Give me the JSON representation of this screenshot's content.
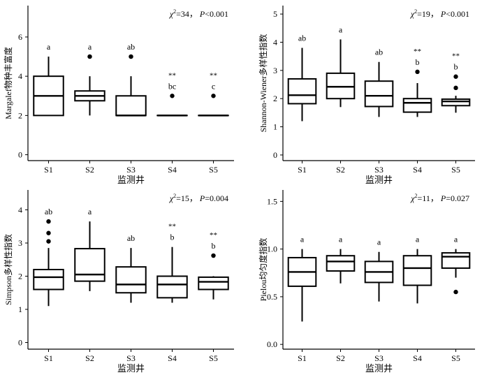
{
  "chart_data": [
    {
      "type": "box",
      "ylabel": "Margalef物种丰富度",
      "xlabel": "监测井",
      "ylim": [
        -0.3,
        7.6
      ],
      "yticks": [
        0,
        2,
        4,
        6
      ],
      "ytick_labels": [
        "0",
        "2",
        "4",
        "6"
      ],
      "categories": [
        "S1",
        "S2",
        "S3",
        "S4",
        "S5"
      ],
      "stat_chi": "34",
      "stat_p": "P<0.001",
      "boxes": [
        {
          "whisker_low": 2.0,
          "q1": 2.0,
          "median": 3.0,
          "q3": 4.0,
          "whisker_high": 5.0,
          "outliers": [],
          "letter": "a",
          "sig": ""
        },
        {
          "whisker_low": 2.0,
          "q1": 2.75,
          "median": 3.0,
          "q3": 3.25,
          "whisker_high": 4.0,
          "outliers": [
            5.0
          ],
          "letter": "a",
          "sig": ""
        },
        {
          "whisker_low": 2.0,
          "q1": 2.0,
          "median": 2.0,
          "q3": 3.0,
          "whisker_high": 4.0,
          "outliers": [
            5.0
          ],
          "letter": "ab",
          "sig": ""
        },
        {
          "whisker_low": 2.0,
          "q1": 2.0,
          "median": 2.0,
          "q3": 2.0,
          "whisker_high": 2.0,
          "outliers": [
            3.0
          ],
          "letter": "bc",
          "sig": "**"
        },
        {
          "whisker_low": 2.0,
          "q1": 2.0,
          "median": 2.0,
          "q3": 2.0,
          "whisker_high": 2.0,
          "outliers": [
            3.0
          ],
          "letter": "c",
          "sig": "**"
        }
      ]
    },
    {
      "type": "box",
      "ylabel": "Shannon-Wiener多样性指数",
      "xlabel": "监测井",
      "ylim": [
        -0.2,
        5.3
      ],
      "yticks": [
        0,
        1,
        2,
        3,
        4,
        5
      ],
      "ytick_labels": [
        "0",
        "1",
        "2",
        "3",
        "4",
        "5"
      ],
      "categories": [
        "S1",
        "S2",
        "S3",
        "S4",
        "S5"
      ],
      "stat_chi": "19",
      "stat_p": "P<0.001",
      "boxes": [
        {
          "whisker_low": 1.2,
          "q1": 1.82,
          "median": 2.12,
          "q3": 2.7,
          "whisker_high": 3.8,
          "outliers": [],
          "letter": "ab",
          "sig": ""
        },
        {
          "whisker_low": 1.7,
          "q1": 2.0,
          "median": 2.42,
          "q3": 2.9,
          "whisker_high": 4.1,
          "outliers": [],
          "letter": "a",
          "sig": ""
        },
        {
          "whisker_low": 1.35,
          "q1": 1.72,
          "median": 2.1,
          "q3": 2.62,
          "whisker_high": 3.3,
          "outliers": [],
          "letter": "ab",
          "sig": ""
        },
        {
          "whisker_low": 1.35,
          "q1": 1.52,
          "median": 1.85,
          "q3": 2.0,
          "whisker_high": 2.55,
          "outliers": [
            2.95
          ],
          "letter": "b",
          "sig": "**"
        },
        {
          "whisker_low": 1.5,
          "q1": 1.75,
          "median": 1.9,
          "q3": 1.98,
          "whisker_high": 2.1,
          "outliers": [
            2.38,
            2.78
          ],
          "letter": "b",
          "sig": "**"
        }
      ]
    },
    {
      "type": "box",
      "ylabel": "Simpson多样性指数",
      "xlabel": "监测井",
      "ylim": [
        -0.2,
        4.6
      ],
      "yticks": [
        0,
        1,
        2,
        3,
        4
      ],
      "ytick_labels": [
        "0",
        "1",
        "2",
        "3",
        "4"
      ],
      "categories": [
        "S1",
        "S2",
        "S3",
        "S4",
        "S5"
      ],
      "stat_chi": "15",
      "stat_p": "P=0.004",
      "boxes": [
        {
          "whisker_low": 1.1,
          "q1": 1.6,
          "median": 1.97,
          "q3": 2.2,
          "whisker_high": 2.85,
          "outliers": [
            3.05,
            3.3,
            3.65
          ],
          "letter": "ab",
          "sig": ""
        },
        {
          "whisker_low": 1.55,
          "q1": 1.85,
          "median": 2.05,
          "q3": 2.83,
          "whisker_high": 3.65,
          "outliers": [],
          "letter": "a",
          "sig": ""
        },
        {
          "whisker_low": 1.2,
          "q1": 1.5,
          "median": 1.75,
          "q3": 2.28,
          "whisker_high": 2.85,
          "outliers": [],
          "letter": "ab",
          "sig": ""
        },
        {
          "whisker_low": 1.2,
          "q1": 1.35,
          "median": 1.75,
          "q3": 2.0,
          "whisker_high": 2.88,
          "outliers": [],
          "letter": "b",
          "sig": "**"
        },
        {
          "whisker_low": 1.3,
          "q1": 1.6,
          "median": 1.83,
          "q3": 1.97,
          "whisker_high": 2.0,
          "outliers": [
            2.62
          ],
          "letter": "b",
          "sig": "**"
        }
      ]
    },
    {
      "type": "box",
      "ylabel": "Pielou均匀度指数",
      "xlabel": "监测井",
      "ylim": [
        -0.05,
        1.62
      ],
      "yticks": [
        0,
        0.5,
        1.0,
        1.5
      ],
      "ytick_labels": [
        "0.0",
        "0.5",
        "1.0",
        "1.5"
      ],
      "categories": [
        "S1",
        "S2",
        "S3",
        "S4",
        "S5"
      ],
      "stat_chi": "11",
      "stat_p": "P=0.027",
      "boxes": [
        {
          "whisker_low": 0.24,
          "q1": 0.61,
          "median": 0.76,
          "q3": 0.91,
          "whisker_high": 1.0,
          "outliers": [],
          "letter": "a",
          "sig": ""
        },
        {
          "whisker_low": 0.64,
          "q1": 0.77,
          "median": 0.87,
          "q3": 0.93,
          "whisker_high": 1.0,
          "outliers": [],
          "letter": "a",
          "sig": ""
        },
        {
          "whisker_low": 0.45,
          "q1": 0.65,
          "median": 0.76,
          "q3": 0.87,
          "whisker_high": 0.97,
          "outliers": [],
          "letter": "a",
          "sig": ""
        },
        {
          "whisker_low": 0.43,
          "q1": 0.62,
          "median": 0.8,
          "q3": 0.93,
          "whisker_high": 1.0,
          "outliers": [],
          "letter": "a",
          "sig": ""
        },
        {
          "whisker_low": 0.7,
          "q1": 0.8,
          "median": 0.92,
          "q3": 0.96,
          "whisker_high": 1.0,
          "outliers": [
            0.55
          ],
          "letter": "a",
          "sig": ""
        }
      ]
    }
  ]
}
